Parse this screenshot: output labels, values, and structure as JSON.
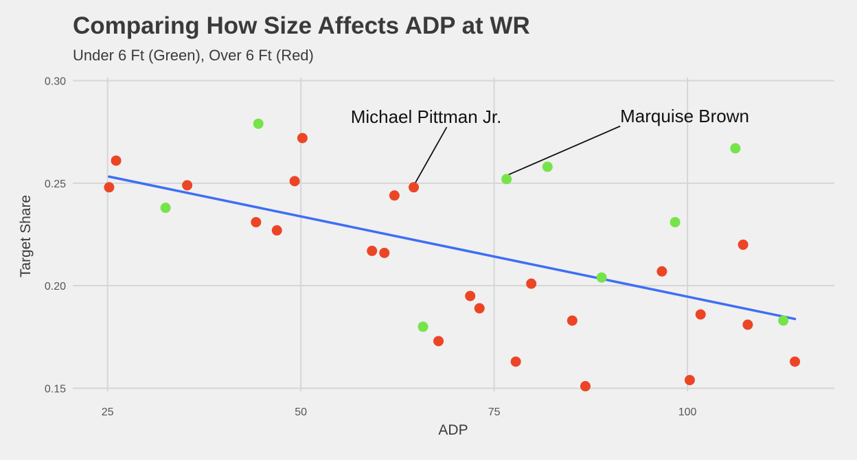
{
  "chart_data": {
    "type": "scatter",
    "title": "Comparing How Size Affects ADP at WR",
    "subtitle": "Under 6 Ft (Green), Over 6 Ft (Red)",
    "xlabel": "ADP",
    "ylabel": "Target Share",
    "xlim": [
      20.5,
      119
    ],
    "ylim": [
      0.1485,
      0.3015
    ],
    "x_ticks": [
      25,
      50,
      75,
      100
    ],
    "x_tick_labels": [
      "25",
      "50",
      "75",
      "100"
    ],
    "y_ticks": [
      0.15,
      0.2,
      0.25,
      0.3
    ],
    "y_tick_labels": [
      "0.15",
      "0.20",
      "0.25",
      "0.30"
    ],
    "grid": true,
    "colors": {
      "under": "#77e34a",
      "over": "#ec4526",
      "trend": "#3d6ef5",
      "grid": "#d6d6d6",
      "background": "#f0f0f0"
    },
    "points": [
      {
        "x": 25.2,
        "y": 0.248,
        "group": "over"
      },
      {
        "x": 26.1,
        "y": 0.261,
        "group": "over"
      },
      {
        "x": 32.5,
        "y": 0.238,
        "group": "under"
      },
      {
        "x": 35.3,
        "y": 0.249,
        "group": "over"
      },
      {
        "x": 44.2,
        "y": 0.231,
        "group": "over"
      },
      {
        "x": 44.5,
        "y": 0.279,
        "group": "under"
      },
      {
        "x": 46.9,
        "y": 0.227,
        "group": "over"
      },
      {
        "x": 49.2,
        "y": 0.251,
        "group": "over"
      },
      {
        "x": 50.2,
        "y": 0.272,
        "group": "over"
      },
      {
        "x": 59.2,
        "y": 0.217,
        "group": "over"
      },
      {
        "x": 60.8,
        "y": 0.216,
        "group": "over"
      },
      {
        "x": 62.1,
        "y": 0.244,
        "group": "over"
      },
      {
        "x": 64.6,
        "y": 0.248,
        "group": "over"
      },
      {
        "x": 65.8,
        "y": 0.18,
        "group": "under"
      },
      {
        "x": 67.8,
        "y": 0.173,
        "group": "over"
      },
      {
        "x": 71.9,
        "y": 0.195,
        "group": "over"
      },
      {
        "x": 73.1,
        "y": 0.189,
        "group": "over"
      },
      {
        "x": 76.6,
        "y": 0.252,
        "group": "under"
      },
      {
        "x": 77.8,
        "y": 0.163,
        "group": "over"
      },
      {
        "x": 79.8,
        "y": 0.201,
        "group": "over"
      },
      {
        "x": 81.9,
        "y": 0.258,
        "group": "under"
      },
      {
        "x": 85.1,
        "y": 0.183,
        "group": "over"
      },
      {
        "x": 86.8,
        "y": 0.151,
        "group": "over"
      },
      {
        "x": 88.9,
        "y": 0.204,
        "group": "under"
      },
      {
        "x": 96.7,
        "y": 0.207,
        "group": "over"
      },
      {
        "x": 98.4,
        "y": 0.231,
        "group": "under"
      },
      {
        "x": 100.3,
        "y": 0.154,
        "group": "over"
      },
      {
        "x": 101.7,
        "y": 0.186,
        "group": "over"
      },
      {
        "x": 106.2,
        "y": 0.267,
        "group": "under"
      },
      {
        "x": 107.2,
        "y": 0.22,
        "group": "over"
      },
      {
        "x": 107.8,
        "y": 0.181,
        "group": "over"
      },
      {
        "x": 112.4,
        "y": 0.183,
        "group": "under"
      },
      {
        "x": 113.9,
        "y": 0.163,
        "group": "over"
      }
    ],
    "trend_line": {
      "x": [
        25.2,
        113.9
      ],
      "y": [
        0.2532,
        0.1838
      ]
    },
    "annotations": [
      {
        "text": "Michael Pittman Jr.",
        "point": {
          "x": 64.6,
          "y": 0.248
        },
        "label_at": {
          "x": 66.2,
          "y": 0.282
        },
        "text_anchor": "middle"
      },
      {
        "text": "Marquise Brown",
        "point": {
          "x": 76.6,
          "y": 0.252
        },
        "label_at": {
          "x": 91.3,
          "y": 0.2825
        },
        "text_anchor": "start"
      }
    ]
  }
}
